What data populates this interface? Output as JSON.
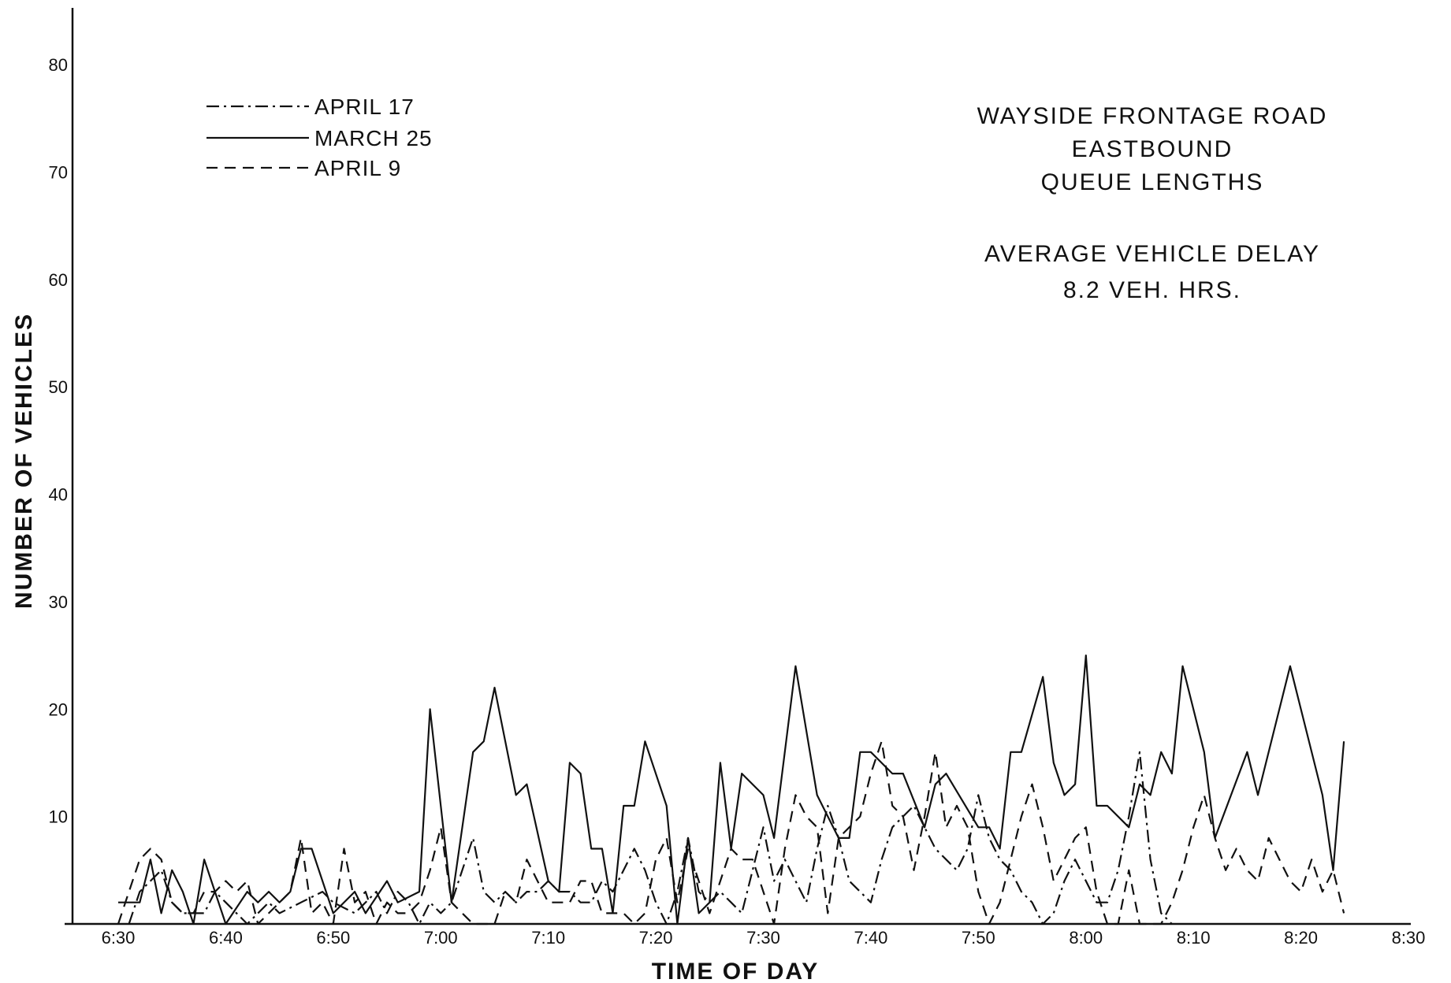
{
  "chart_data": {
    "type": "line",
    "title_lines": [
      "WAYSIDE FRONTAGE ROAD",
      "EASTBOUND",
      "QUEUE  LENGTHS"
    ],
    "annotation_lines": [
      "AVERAGE  VEHICLE  DELAY",
      "8.2  VEH.  HRS."
    ],
    "xlabel": "TIME  OF  DAY",
    "ylabel": "NUMBER  OF  VEHICLES",
    "xlim": [
      0,
      120
    ],
    "ylim": [
      0,
      82
    ],
    "x_ticks": [
      {
        "v": 0,
        "label": "6:30"
      },
      {
        "v": 10,
        "label": "6:40"
      },
      {
        "v": 20,
        "label": "6:50"
      },
      {
        "v": 30,
        "label": "7:00"
      },
      {
        "v": 40,
        "label": "7:10"
      },
      {
        "v": 50,
        "label": "7:20"
      },
      {
        "v": 60,
        "label": "7:30"
      },
      {
        "v": 70,
        "label": "7:40"
      },
      {
        "v": 80,
        "label": "7:50"
      },
      {
        "v": 90,
        "label": "8:00"
      },
      {
        "v": 100,
        "label": "8:10"
      },
      {
        "v": 110,
        "label": "8:20"
      },
      {
        "v": 120,
        "label": "8:30"
      }
    ],
    "y_ticks": [
      {
        "v": 10,
        "label": "10"
      },
      {
        "v": 20,
        "label": "20"
      },
      {
        "v": 30,
        "label": "30"
      },
      {
        "v": 40,
        "label": "40"
      },
      {
        "v": 50,
        "label": "50"
      },
      {
        "v": 60,
        "label": "60"
      },
      {
        "v": 70,
        "label": "70"
      },
      {
        "v": 80,
        "label": "80"
      }
    ],
    "legend_position": "top-left",
    "series": [
      {
        "name": "APRIL 17",
        "dash": "16,6,3,6",
        "points": [
          [
            1,
            0
          ],
          [
            2,
            3
          ],
          [
            4,
            5
          ],
          [
            5,
            2
          ],
          [
            6,
            1
          ],
          [
            8,
            1
          ],
          [
            9,
            3
          ],
          [
            10,
            2
          ],
          [
            12,
            0
          ],
          [
            14,
            2
          ],
          [
            15,
            1
          ],
          [
            17,
            2
          ],
          [
            19,
            3
          ],
          [
            20,
            2
          ],
          [
            22,
            1
          ],
          [
            24,
            3
          ],
          [
            25,
            1
          ],
          [
            26,
            3
          ],
          [
            27,
            2
          ],
          [
            28,
            0
          ],
          [
            29,
            2
          ],
          [
            30,
            1
          ],
          [
            31,
            2
          ],
          [
            32,
            5
          ],
          [
            33,
            8
          ],
          [
            34,
            3
          ],
          [
            35,
            2
          ],
          [
            36,
            3
          ],
          [
            37,
            2
          ],
          [
            38,
            3
          ],
          [
            39,
            3
          ],
          [
            40,
            4
          ],
          [
            41,
            3
          ],
          [
            42,
            3
          ],
          [
            43,
            2
          ],
          [
            44,
            2
          ],
          [
            45,
            4
          ],
          [
            46,
            3
          ],
          [
            47,
            5
          ],
          [
            48,
            7
          ],
          [
            49,
            5
          ],
          [
            50,
            2
          ],
          [
            51,
            0
          ],
          [
            52,
            3
          ],
          [
            53,
            8
          ],
          [
            54,
            3
          ],
          [
            55,
            2
          ],
          [
            56,
            3
          ],
          [
            57,
            2
          ],
          [
            58,
            1
          ],
          [
            59,
            5
          ],
          [
            60,
            9
          ],
          [
            61,
            4
          ],
          [
            62,
            6
          ],
          [
            63,
            4
          ],
          [
            64,
            2
          ],
          [
            65,
            7
          ],
          [
            66,
            11
          ],
          [
            67,
            8
          ],
          [
            68,
            4
          ],
          [
            69,
            3
          ],
          [
            70,
            2
          ],
          [
            71,
            6
          ],
          [
            72,
            9
          ],
          [
            73,
            10
          ],
          [
            74,
            11
          ],
          [
            75,
            9
          ],
          [
            76,
            7
          ],
          [
            77,
            6
          ],
          [
            78,
            5
          ],
          [
            79,
            7
          ],
          [
            80,
            12
          ],
          [
            81,
            8
          ],
          [
            82,
            6
          ],
          [
            83,
            5
          ],
          [
            84,
            3
          ],
          [
            85,
            2
          ],
          [
            86,
            0
          ],
          [
            87,
            1
          ],
          [
            88,
            4
          ],
          [
            89,
            6
          ],
          [
            90,
            4
          ],
          [
            91,
            2
          ],
          [
            92,
            2
          ],
          [
            93,
            5
          ],
          [
            94,
            10
          ],
          [
            95,
            16
          ],
          [
            96,
            6
          ],
          [
            97,
            1
          ],
          [
            98,
            0
          ]
        ]
      },
      {
        "name": "MARCH 25",
        "dash": "",
        "points": [
          [
            0,
            2
          ],
          [
            2,
            2
          ],
          [
            3,
            6
          ],
          [
            4,
            1
          ],
          [
            5,
            5
          ],
          [
            6,
            3
          ],
          [
            7,
            0
          ],
          [
            8,
            6
          ],
          [
            10,
            0
          ],
          [
            12,
            3
          ],
          [
            13,
            2
          ],
          [
            14,
            3
          ],
          [
            15,
            2
          ],
          [
            16,
            3
          ],
          [
            17,
            7
          ],
          [
            18,
            7
          ],
          [
            20,
            1
          ],
          [
            22,
            3
          ],
          [
            23,
            1
          ],
          [
            25,
            4
          ],
          [
            26,
            2
          ],
          [
            28,
            3
          ],
          [
            29,
            20
          ],
          [
            31,
            2
          ],
          [
            33,
            16
          ],
          [
            34,
            17
          ],
          [
            35,
            22
          ],
          [
            37,
            12
          ],
          [
            38,
            13
          ],
          [
            40,
            4
          ],
          [
            41,
            3
          ],
          [
            42,
            15
          ],
          [
            43,
            14
          ],
          [
            44,
            7
          ],
          [
            45,
            7
          ],
          [
            46,
            1
          ],
          [
            47,
            11
          ],
          [
            48,
            11
          ],
          [
            49,
            17
          ],
          [
            51,
            11
          ],
          [
            52,
            0
          ],
          [
            53,
            8
          ],
          [
            54,
            1
          ],
          [
            55,
            2
          ],
          [
            56,
            15
          ],
          [
            57,
            7
          ],
          [
            58,
            14
          ],
          [
            60,
            12
          ],
          [
            61,
            8
          ],
          [
            63,
            24
          ],
          [
            65,
            12
          ],
          [
            67,
            8
          ],
          [
            68,
            8
          ],
          [
            69,
            16
          ],
          [
            70,
            16
          ],
          [
            72,
            14
          ],
          [
            73,
            14
          ],
          [
            75,
            9
          ],
          [
            76,
            13
          ],
          [
            77,
            14
          ],
          [
            80,
            9
          ],
          [
            81,
            9
          ],
          [
            82,
            7
          ],
          [
            83,
            16
          ],
          [
            84,
            16
          ],
          [
            86,
            23
          ],
          [
            87,
            15
          ],
          [
            88,
            12
          ],
          [
            89,
            13
          ],
          [
            90,
            25
          ],
          [
            91,
            11
          ],
          [
            92,
            11
          ],
          [
            94,
            9
          ],
          [
            95,
            13
          ],
          [
            96,
            12
          ],
          [
            97,
            16
          ],
          [
            98,
            14
          ],
          [
            99,
            24
          ],
          [
            101,
            16
          ],
          [
            102,
            8
          ],
          [
            105,
            16
          ],
          [
            106,
            12
          ],
          [
            109,
            24
          ],
          [
            112,
            12
          ],
          [
            113,
            5
          ],
          [
            114,
            17
          ]
        ]
      },
      {
        "name": "APRIL 9",
        "dash": "14,9",
        "points": [
          [
            0,
            0
          ],
          [
            1,
            3
          ],
          [
            2,
            6
          ],
          [
            3,
            7
          ],
          [
            4,
            6
          ],
          [
            5,
            2
          ],
          [
            6,
            1
          ],
          [
            7,
            1
          ],
          [
            8,
            3
          ],
          [
            9,
            3
          ],
          [
            10,
            4
          ],
          [
            11,
            3
          ],
          [
            12,
            4
          ],
          [
            13,
            0
          ],
          [
            14,
            1
          ],
          [
            16,
            3
          ],
          [
            17,
            8
          ],
          [
            18,
            1
          ],
          [
            19,
            2
          ],
          [
            20,
            0
          ],
          [
            21,
            7
          ],
          [
            22,
            2
          ],
          [
            23,
            3
          ],
          [
            24,
            0
          ],
          [
            25,
            2
          ],
          [
            26,
            1
          ],
          [
            27,
            1
          ],
          [
            28,
            2
          ],
          [
            29,
            5
          ],
          [
            30,
            9
          ],
          [
            31,
            2
          ],
          [
            32,
            1
          ],
          [
            33,
            0
          ],
          [
            35,
            0
          ],
          [
            36,
            3
          ],
          [
            37,
            2
          ],
          [
            38,
            6
          ],
          [
            39,
            4
          ],
          [
            40,
            2
          ],
          [
            41,
            2
          ],
          [
            42,
            2
          ],
          [
            43,
            4
          ],
          [
            44,
            4
          ],
          [
            45,
            1
          ],
          [
            46,
            1
          ],
          [
            47,
            1
          ],
          [
            48,
            0
          ],
          [
            49,
            1
          ],
          [
            50,
            6
          ],
          [
            51,
            8
          ],
          [
            52,
            2
          ],
          [
            53,
            7
          ],
          [
            54,
            4
          ],
          [
            55,
            1
          ],
          [
            57,
            7
          ],
          [
            58,
            6
          ],
          [
            59,
            6
          ],
          [
            60,
            3
          ],
          [
            61,
            0
          ],
          [
            62,
            7
          ],
          [
            63,
            12
          ],
          [
            64,
            10
          ],
          [
            65,
            9
          ],
          [
            66,
            1
          ],
          [
            67,
            8
          ],
          [
            68,
            9
          ],
          [
            69,
            10
          ],
          [
            70,
            14
          ],
          [
            71,
            17
          ],
          [
            72,
            11
          ],
          [
            73,
            10
          ],
          [
            74,
            5
          ],
          [
            75,
            10
          ],
          [
            76,
            16
          ],
          [
            77,
            9
          ],
          [
            78,
            11
          ],
          [
            79,
            9
          ],
          [
            80,
            3
          ],
          [
            81,
            0
          ],
          [
            82,
            2
          ],
          [
            83,
            6
          ],
          [
            84,
            10
          ],
          [
            85,
            13
          ],
          [
            86,
            9
          ],
          [
            87,
            4
          ],
          [
            88,
            6
          ],
          [
            89,
            8
          ],
          [
            90,
            9
          ],
          [
            91,
            3
          ],
          [
            92,
            0
          ],
          [
            93,
            0
          ],
          [
            94,
            5
          ],
          [
            95,
            0
          ],
          [
            96,
            0
          ],
          [
            97,
            0
          ],
          [
            98,
            2
          ],
          [
            99,
            5
          ],
          [
            100,
            9
          ],
          [
            101,
            12
          ],
          [
            102,
            8
          ],
          [
            103,
            5
          ],
          [
            104,
            7
          ],
          [
            105,
            5
          ],
          [
            106,
            4
          ],
          [
            107,
            8
          ],
          [
            108,
            6
          ],
          [
            109,
            4
          ],
          [
            110,
            3
          ],
          [
            111,
            6
          ],
          [
            112,
            3
          ],
          [
            113,
            5
          ],
          [
            114,
            1
          ]
        ]
      }
    ]
  }
}
